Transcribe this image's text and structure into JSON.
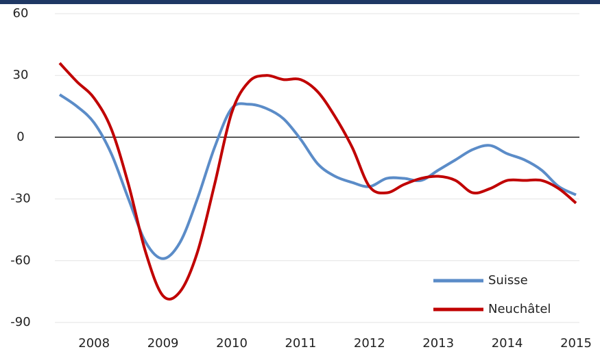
{
  "chart_data": {
    "type": "line",
    "categories": [
      null,
      null,
      "2008",
      null,
      null,
      null,
      "2009",
      null,
      null,
      null,
      "2010",
      null,
      null,
      null,
      "2011",
      null,
      null,
      null,
      "2012",
      null,
      null,
      null,
      "2013",
      null,
      null,
      null,
      "2014",
      null,
      null,
      null,
      "2015"
    ],
    "series": [
      {
        "name": "Suisse",
        "color": "#5b8cc8",
        "values": [
          20.7,
          15,
          7,
          -8,
          -30,
          -51,
          -59,
          -51,
          -30,
          -5,
          14,
          16,
          14,
          9,
          -1,
          -13,
          -19,
          -22,
          -24,
          -20,
          -20,
          -21,
          -16,
          -11,
          -6,
          -4,
          -8,
          -11,
          -16,
          -24,
          -28
        ]
      },
      {
        "name": "Neuchâtel",
        "color": "#c00000",
        "values": [
          36,
          27,
          19,
          4,
          -23,
          -56,
          -77,
          -75,
          -56,
          -23,
          12,
          27,
          30,
          28,
          28,
          22,
          10,
          -5,
          -24,
          -27,
          -23,
          -20,
          -19,
          -21,
          -27,
          -25,
          -21,
          -21,
          -21,
          -25,
          -32
        ]
      }
    ],
    "ylim": [
      -90,
      60
    ],
    "yticks": [
      -90,
      -60,
      -30,
      0,
      30,
      60
    ],
    "grid": true,
    "legend": "lower right"
  }
}
